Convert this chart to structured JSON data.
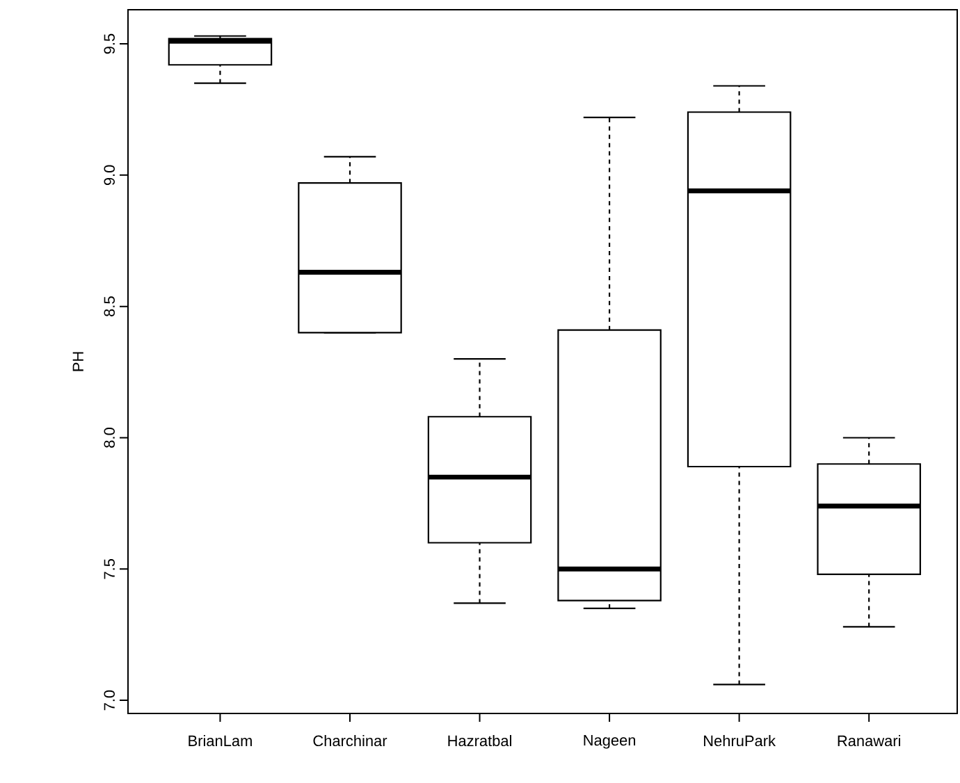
{
  "chart_data": {
    "type": "box",
    "ylabel": "PH",
    "categories": [
      "BrianLam",
      "Charchinar",
      "Hazratbal",
      "Nageen",
      "NehruPark",
      "Ranawari"
    ],
    "boxes": [
      {
        "low": 9.35,
        "q1": 9.42,
        "median": 9.51,
        "q3": 9.52,
        "high": 9.53
      },
      {
        "low": 8.4,
        "q1": 8.4,
        "median": 8.63,
        "q3": 8.97,
        "high": 9.07
      },
      {
        "low": 7.37,
        "q1": 7.6,
        "median": 7.85,
        "q3": 8.08,
        "high": 8.3
      },
      {
        "low": 7.35,
        "q1": 7.38,
        "median": 7.5,
        "q3": 8.41,
        "high": 9.22
      },
      {
        "low": 7.06,
        "q1": 7.89,
        "median": 8.94,
        "q3": 9.24,
        "high": 9.34
      },
      {
        "low": 7.28,
        "q1": 7.48,
        "median": 7.74,
        "q3": 7.9,
        "high": 8.0
      }
    ],
    "ylim": [
      6.95,
      9.63
    ],
    "yticks": [
      {
        "value": 7.0,
        "label": "7.0"
      },
      {
        "value": 7.5,
        "label": "7.5"
      },
      {
        "value": 8.0,
        "label": "8.0"
      },
      {
        "value": 8.5,
        "label": "8.5"
      },
      {
        "value": 9.0,
        "label": "9.0"
      },
      {
        "value": 9.5,
        "label": "9.5"
      }
    ]
  }
}
